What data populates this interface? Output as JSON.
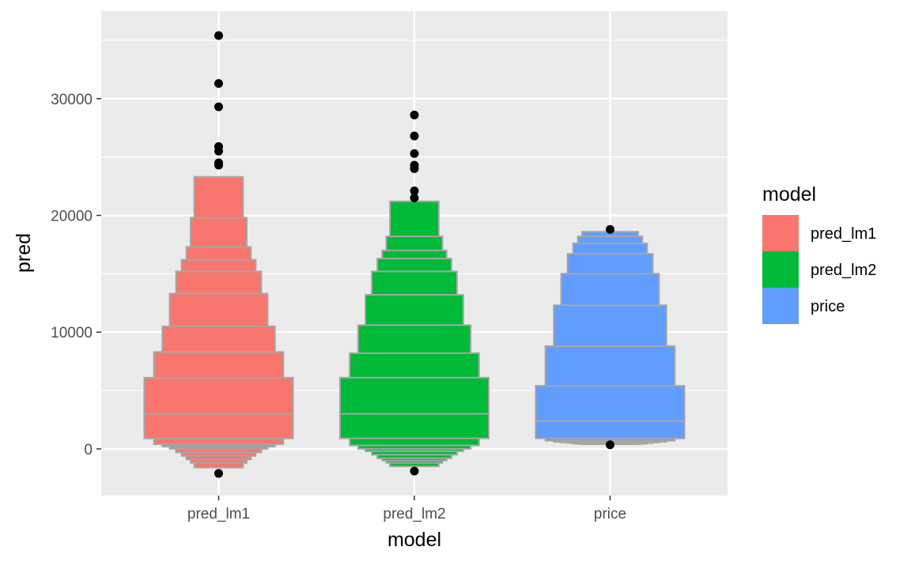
{
  "chart_data": {
    "type": "letter-value boxplot",
    "xlabel": "model",
    "ylabel": "pred",
    "categories": [
      "pred_lm1",
      "pred_lm2",
      "price"
    ],
    "ylim": [
      -4000,
      37500
    ],
    "yticks": [
      0,
      10000,
      20000,
      30000
    ],
    "grid": true,
    "legend": {
      "title": "model",
      "position": "right",
      "entries": [
        "pred_lm1",
        "pred_lm2",
        "price"
      ]
    },
    "series": [
      {
        "name": "pred_lm1",
        "color": "#F8766D",
        "median": 3000,
        "boxes": [
          {
            "low": 900,
            "high": 6100
          },
          {
            "low": 400,
            "high": 8300
          },
          {
            "low": 200,
            "high": 10500
          },
          {
            "low": 0,
            "high": 13300
          },
          {
            "low": -300,
            "high": 15200
          },
          {
            "low": -600,
            "high": 16200
          },
          {
            "low": -900,
            "high": 17300
          },
          {
            "low": -1200,
            "high": 19800
          },
          {
            "low": -1600,
            "high": 23300
          }
        ],
        "outliers": [
          35400,
          31300,
          29300,
          25900,
          25500,
          24500,
          24300,
          -2100
        ]
      },
      {
        "name": "pred_lm2",
        "color": "#00BA38",
        "median": 3000,
        "boxes": [
          {
            "low": 900,
            "high": 6100
          },
          {
            "low": 300,
            "high": 8200
          },
          {
            "low": 0,
            "high": 10600
          },
          {
            "low": -200,
            "high": 13200
          },
          {
            "low": -500,
            "high": 15200
          },
          {
            "low": -800,
            "high": 16300
          },
          {
            "low": -1000,
            "high": 17000
          },
          {
            "low": -1200,
            "high": 18200
          },
          {
            "low": -1500,
            "high": 21200
          }
        ],
        "outliers": [
          28600,
          26800,
          25300,
          24300,
          24000,
          22100,
          21500,
          -1900
        ]
      },
      {
        "name": "price",
        "color": "#619CFF",
        "median": 2400,
        "boxes": [
          {
            "low": 900,
            "high": 5400
          },
          {
            "low": 700,
            "high": 8800
          },
          {
            "low": 600,
            "high": 12300
          },
          {
            "low": 550,
            "high": 15000
          },
          {
            "low": 500,
            "high": 16700
          },
          {
            "low": 450,
            "high": 17600
          },
          {
            "low": 420,
            "high": 18200
          },
          {
            "low": 400,
            "high": 18600
          }
        ],
        "outliers": [
          18800,
          350
        ]
      }
    ]
  }
}
